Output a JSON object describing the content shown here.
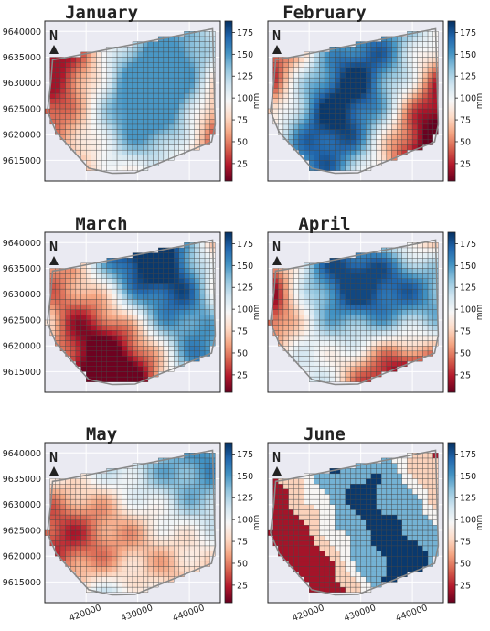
{
  "colors": {
    "panel_bg": "#eaeaf2",
    "grid": "#ffffff",
    "cell_edge": "#444444",
    "outline": "#888888",
    "colormap": [
      "#67001f",
      "#b2182b",
      "#d6604d",
      "#f4a582",
      "#fddbc7",
      "#f7f7f7",
      "#d1e5f0",
      "#92c5de",
      "#4393c3",
      "#2166ac",
      "#053061"
    ]
  },
  "chart_data": {
    "type": "heatmap",
    "north_label": "N",
    "north_arrow_icon": "triangle-up-icon",
    "x_ticks": [
      "420000",
      "430000",
      "440000"
    ],
    "x_tick_values": [
      420000,
      430000,
      440000
    ],
    "y_ticks": [
      "9640000",
      "9635000",
      "9630000",
      "9625000",
      "9620000",
      "9615000"
    ],
    "y_tick_values": [
      9640000,
      9635000,
      9630000,
      9625000,
      9620000,
      9615000
    ],
    "xlim": [
      412000,
      446000
    ],
    "ylim": [
      9611000,
      9642000
    ],
    "grid": true,
    "colorbar": {
      "label": "mm",
      "ticks": [
        "175",
        "150",
        "125",
        "100",
        "75",
        "50",
        "25"
      ],
      "tick_values": [
        175,
        150,
        125,
        100,
        75,
        50,
        25
      ],
      "range": [
        5,
        188
      ],
      "cmap": "RdBu"
    },
    "cell_size": 1000,
    "boundary": [
      [
        413500,
        9634500
      ],
      [
        415500,
        9634800
      ],
      [
        444500,
        9640500
      ],
      [
        445000,
        9622000
      ],
      [
        444300,
        9618600
      ],
      [
        429500,
        9612600
      ],
      [
        425000,
        9612500
      ],
      [
        420500,
        9613500
      ],
      [
        414200,
        9620500
      ],
      [
        412500,
        9624500
      ],
      [
        413200,
        9630500
      ]
    ],
    "panels": [
      {
        "title": "January",
        "lo": [
          20,
          25
        ],
        "hi": [
          115,
          150
        ],
        "fields": [
          [
            0.32,
            0.8,
            1
          ],
          [
            0.9,
            -1.3,
            0.7
          ],
          [
            -0.7,
            1.6,
            0.6
          ],
          [
            0.4,
            0.4,
            0.4
          ]
        ],
        "quantized": false
      },
      {
        "title": "February",
        "lo": [
          5,
          20
        ],
        "hi": [
          100,
          185
        ],
        "fields": [
          [
            0,
            1.9,
            0.8
          ],
          [
            0.75,
            -0.4,
            0.5
          ],
          [
            -0.7,
            1.3,
            0.6
          ],
          [
            0.6,
            1.9,
            0.4
          ]
        ],
        "quantized": false
      },
      {
        "title": "March",
        "lo": [
          5,
          40
        ],
        "hi": [
          110,
          185
        ],
        "fields": [
          [
            0.55,
            0.8,
            1
          ],
          [
            -1.15,
            2.1,
            0.5
          ],
          [
            0.6,
            -0.9,
            0.6
          ],
          [
            0.4,
            1.5,
            0.5
          ]
        ],
        "quantized": false
      },
      {
        "title": "April",
        "lo": [
          5,
          45
        ],
        "hi": [
          80,
          180
        ],
        "fields": [
          [
            1,
            0.1,
            1
          ],
          [
            0.45,
            -0.25,
            0.7
          ],
          [
            0,
            1.4,
            0.5
          ],
          [
            1.5,
            1.5,
            0.4
          ]
        ],
        "quantized": false
      },
      {
        "title": "May",
        "lo": [
          10,
          60
        ],
        "hi": [
          100,
          180
        ],
        "fields": [
          [
            -0.35,
            0.1,
            0.7
          ],
          [
            0.15,
            2.3,
            0.5
          ],
          [
            0.85,
            -0.45,
            0.5
          ],
          [
            1.6,
            1.5,
            0.4
          ]
        ],
        "quantized": false
      },
      {
        "title": "June",
        "lo": [
          10,
          70
        ],
        "hi": [
          150,
          190
        ],
        "fields": [
          [
            0.15,
            -0.2,
            1
          ],
          [
            -1,
            0.6,
            0.6
          ],
          [
            0.5,
            1.4,
            0.5
          ],
          [
            1.4,
            1.5,
            0.4
          ]
        ],
        "quantized": true
      }
    ]
  }
}
